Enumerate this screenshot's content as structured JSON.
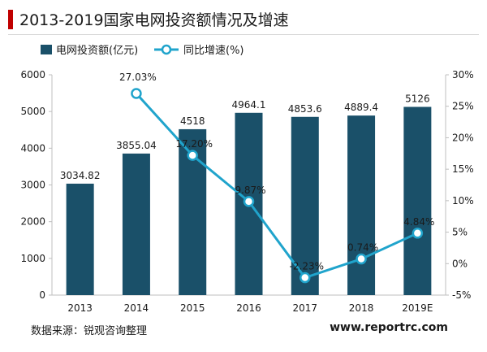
{
  "title": "2013-2019国家电网投资额情况及增速",
  "source": "数据来源：锐观咨询整理",
  "website": "www.reportrc.com",
  "colors": {
    "bar": "#1a5069",
    "line": "#20a4cc",
    "accent": "#c00000"
  },
  "chart_data": {
    "type": "bar",
    "categories": [
      "2013",
      "2014",
      "2015",
      "2016",
      "2017",
      "2018",
      "2019E"
    ],
    "series": [
      {
        "name": "电网投资额(亿元)",
        "type": "bar",
        "axis": "left",
        "values": [
          3034.82,
          3855.04,
          4518,
          4964.1,
          4853.6,
          4889.4,
          5126
        ],
        "labels": [
          "3034.82",
          "3855.04",
          "4518",
          "4964.1",
          "4853.6",
          "4889.4",
          "5126"
        ]
      },
      {
        "name": "同比增速(%)",
        "type": "line",
        "axis": "right",
        "values": [
          null,
          27.03,
          17.2,
          9.87,
          -2.23,
          0.74,
          4.84
        ],
        "labels": [
          "",
          "27.03%",
          "17.20%",
          "9.87%",
          "-2.23%",
          "0.74%",
          "4.84%"
        ]
      }
    ],
    "y_left": {
      "min": 0,
      "max": 6000,
      "ticks": [
        "0",
        "1000",
        "2000",
        "3000",
        "4000",
        "5000",
        "6000"
      ]
    },
    "y_right": {
      "min": -5,
      "max": 30,
      "ticks": [
        "-5%",
        "0%",
        "5%",
        "10%",
        "15%",
        "20%",
        "25%",
        "30%"
      ]
    },
    "grid": false,
    "legend": "top-left"
  }
}
